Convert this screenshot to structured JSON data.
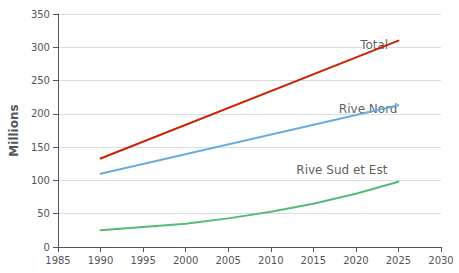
{
  "chart_data": {
    "type": "line",
    "ylabel": "Millions",
    "xlim": [
      1985,
      2030
    ],
    "ylim": [
      0,
      350
    ],
    "xticks": [
      1985,
      1990,
      1995,
      2000,
      2005,
      2010,
      2015,
      2020,
      2025,
      2030
    ],
    "yticks": [
      0,
      50,
      100,
      150,
      200,
      250,
      300,
      350
    ],
    "grid": true,
    "series": [
      {
        "name": "Total",
        "color": "#cc2200",
        "x": [
          1990,
          2025
        ],
        "values": [
          133,
          310
        ]
      },
      {
        "name": "Rive Nord",
        "color": "#6aaddb",
        "x": [
          1990,
          2025
        ],
        "values": [
          110,
          213
        ]
      },
      {
        "name": "Rive Sud et Est",
        "color": "#55bb77",
        "x": [
          1990,
          1995,
          2000,
          2005,
          2010,
          2015,
          2020,
          2025
        ],
        "values": [
          25,
          30,
          35,
          43,
          53,
          65,
          80,
          98
        ]
      }
    ],
    "annotations": [
      {
        "text": "Total",
        "x": 2020.5,
        "y": 295
      },
      {
        "text": "Rive Nord",
        "x": 2018,
        "y": 198
      },
      {
        "text": "Rive Sud et Est",
        "x": 2013,
        "y": 107
      }
    ]
  }
}
